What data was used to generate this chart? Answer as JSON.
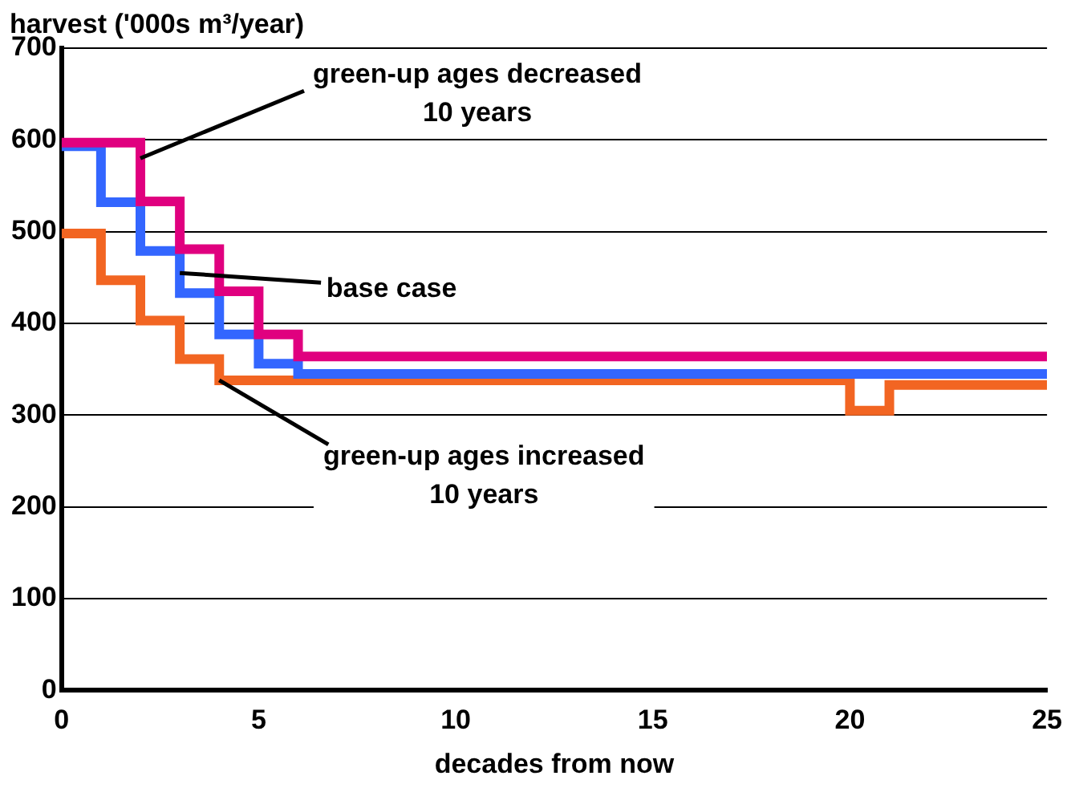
{
  "chart_data": {
    "type": "step",
    "xlabel": "decades from now",
    "ylabel": "harvest ('000s m³/year)",
    "xlim": [
      0,
      25
    ],
    "xticks": [
      0,
      5,
      10,
      15,
      20,
      25
    ],
    "ylim": [
      0,
      700
    ],
    "yticks": [
      0,
      100,
      200,
      300,
      400,
      500,
      600,
      700
    ],
    "grid": "y",
    "legend": false,
    "line_style": "solid",
    "marker": "none",
    "series": [
      {
        "color": "#e0007f",
        "x": [
          0,
          2,
          3,
          4,
          5,
          6,
          25
        ],
        "values": [
          597,
          533,
          481,
          435,
          388,
          364,
          364
        ]
      },
      {
        "color": "#3366ff",
        "x": [
          0,
          1,
          2,
          3,
          4,
          5,
          6,
          25
        ],
        "values": [
          593,
          532,
          479,
          433,
          388,
          356,
          345,
          345
        ]
      },
      {
        "color": "#f26522",
        "x": [
          0,
          1,
          2,
          3,
          4,
          20,
          21,
          25
        ],
        "values": [
          498,
          447,
          403,
          361,
          338,
          305,
          333,
          333
        ]
      }
    ],
    "annotations": [
      {
        "text": "green-up ages decreased\n10 years",
        "x": 2,
        "y": 580
      },
      {
        "text": "base case",
        "x": 3,
        "y": 455
      },
      {
        "text": "green-up ages increased\n10 years",
        "x": 4,
        "y": 338
      }
    ]
  }
}
